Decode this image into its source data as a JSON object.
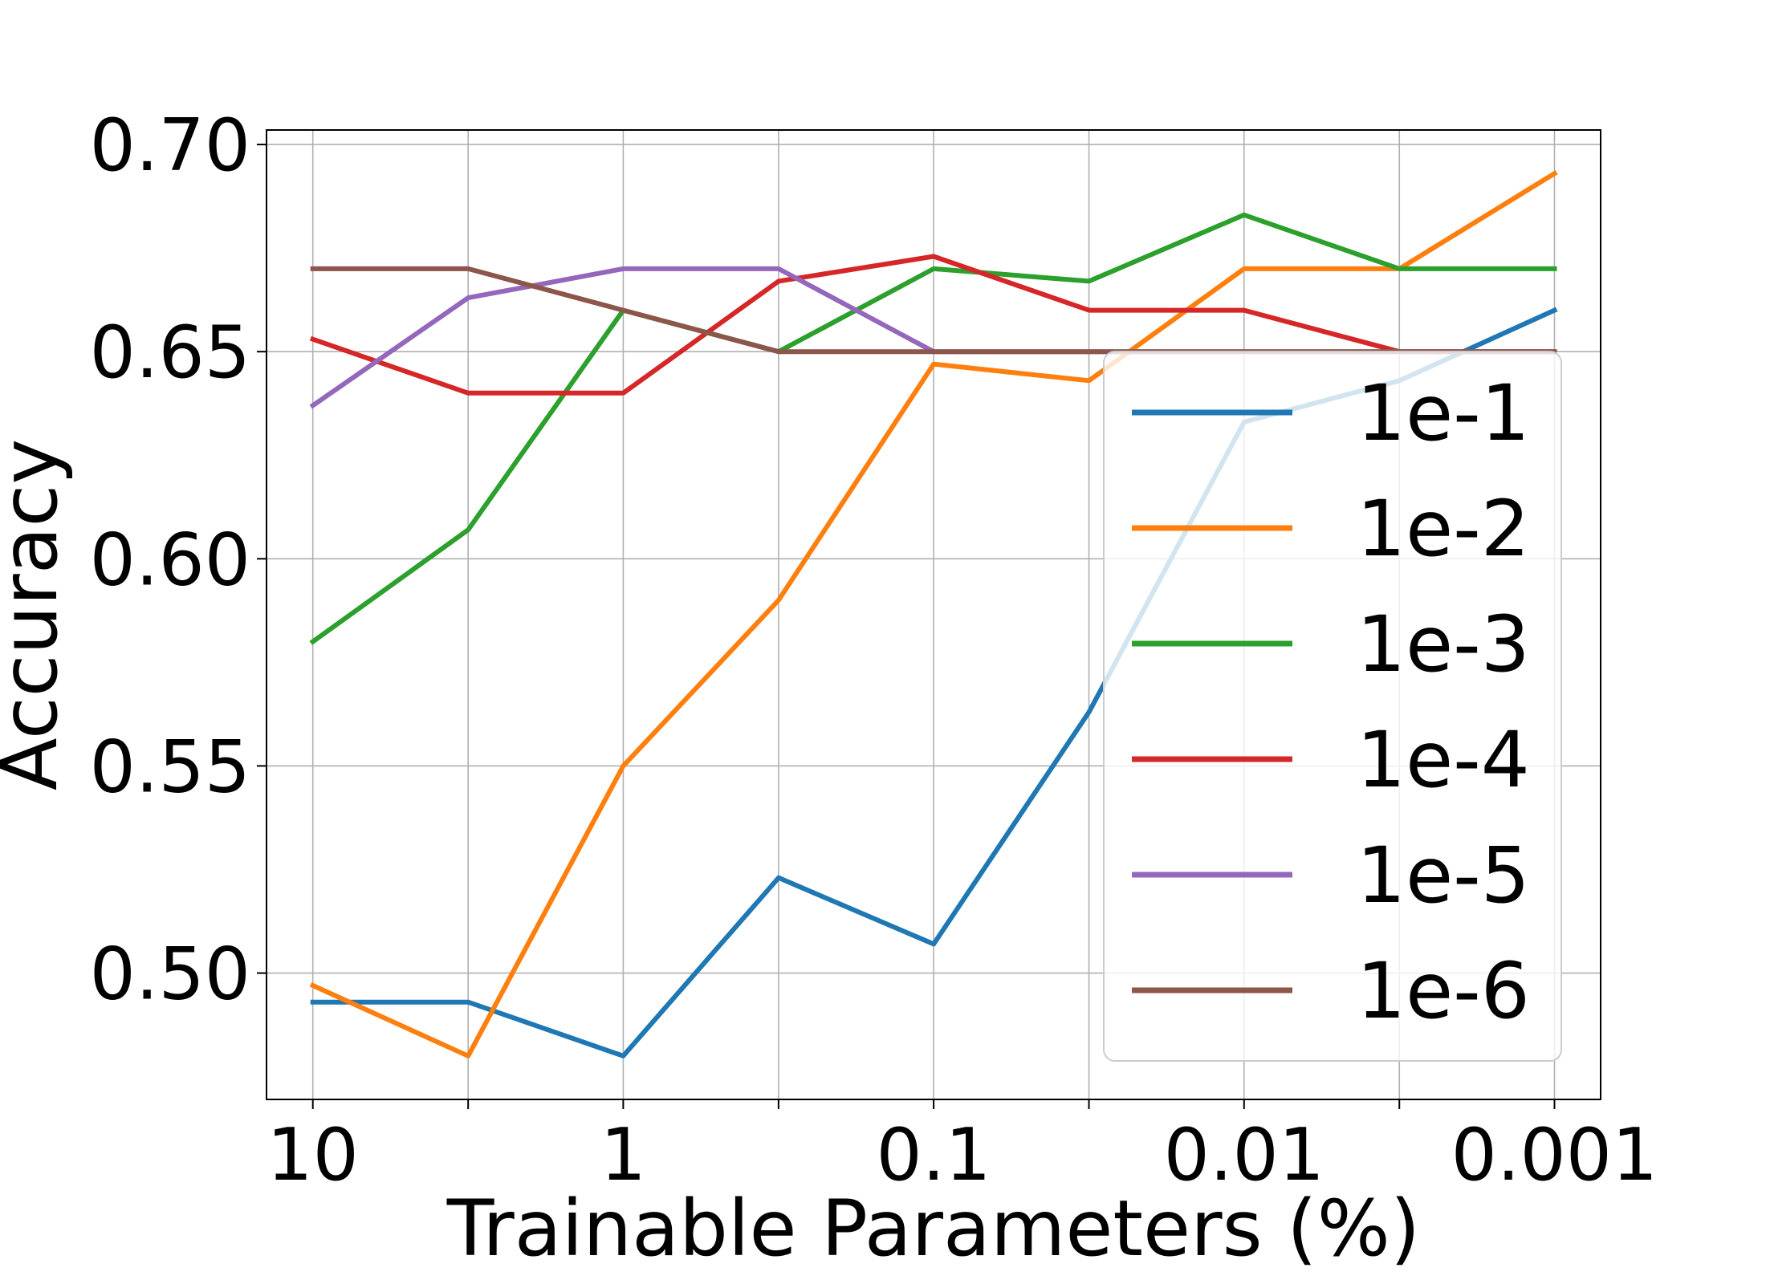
{
  "chart_data": {
    "type": "line",
    "title": "",
    "xlabel": "Trainable Parameters (%)",
    "ylabel": "Accuracy",
    "x": [
      10,
      3.16,
      1,
      0.316,
      0.1,
      0.0316,
      0.01,
      0.00316,
      0.001
    ],
    "x_tick_labels": [
      {
        "value": 10,
        "label": "10"
      },
      {
        "value": 1,
        "label": "1"
      },
      {
        "value": 0.1,
        "label": "0.1"
      },
      {
        "value": 0.01,
        "label": "0.01"
      },
      {
        "value": 0.001,
        "label": "0.001"
      }
    ],
    "x_scale": "log",
    "x_reversed": true,
    "xlim": [
      14.1,
      0.00071
    ],
    "ylim": [
      0.4695,
      0.7035
    ],
    "y_ticks": [
      {
        "value": 0.5,
        "label": "0.50"
      },
      {
        "value": 0.55,
        "label": "0.55"
      },
      {
        "value": 0.6,
        "label": "0.60"
      },
      {
        "value": 0.65,
        "label": "0.65"
      },
      {
        "value": 0.7,
        "label": "0.70"
      }
    ],
    "grid": true,
    "legend_position": "lower right",
    "series": [
      {
        "name": "1e-1",
        "color": "#1f77b4",
        "values": [
          0.493,
          0.493,
          0.48,
          0.523,
          0.507,
          0.563,
          0.633,
          0.643,
          0.66
        ]
      },
      {
        "name": "1e-2",
        "color": "#ff7f0e",
        "values": [
          0.497,
          0.48,
          0.55,
          0.59,
          0.647,
          0.643,
          0.67,
          0.67,
          0.693
        ]
      },
      {
        "name": "1e-3",
        "color": "#2ca02c",
        "values": [
          0.58,
          0.607,
          0.66,
          0.65,
          0.67,
          0.667,
          0.683,
          0.67,
          0.67
        ]
      },
      {
        "name": "1e-4",
        "color": "#d62728",
        "values": [
          0.653,
          0.64,
          0.64,
          0.667,
          0.673,
          0.66,
          0.66,
          0.65,
          0.65
        ]
      },
      {
        "name": "1e-5",
        "color": "#9467bd",
        "values": [
          0.637,
          0.663,
          0.67,
          0.67,
          0.65,
          0.65,
          0.65,
          0.65,
          0.65
        ]
      },
      {
        "name": "1e-6",
        "color": "#8c564b",
        "values": [
          0.67,
          0.67,
          0.66,
          0.65,
          0.65,
          0.65,
          0.65,
          0.65,
          0.65
        ]
      }
    ]
  }
}
